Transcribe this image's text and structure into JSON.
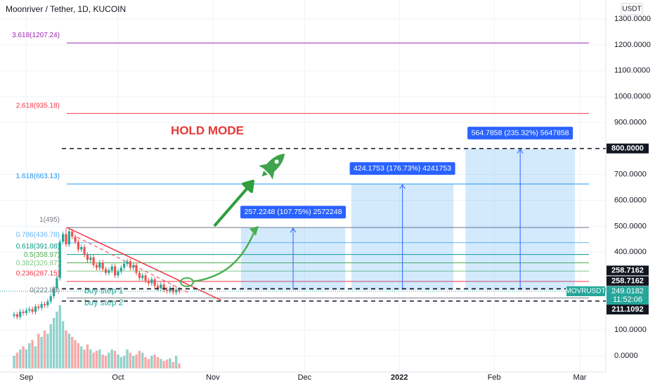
{
  "chart_data": {
    "type": "candlestick",
    "title": "Moonriver / Tether, 1D, KUCOIN",
    "currency": "USDT",
    "annotation": "HOLD MODE",
    "buy_steps": [
      "buy step 1",
      "buy step 2"
    ],
    "ylim": [
      -62.3,
      1373
    ],
    "yticks": [
      {
        "value": 0,
        "label": "0.0000"
      },
      {
        "value": 100,
        "label": "100.0000"
      },
      {
        "value": 400,
        "label": "400.0000"
      },
      {
        "value": 500,
        "label": "500.0000"
      },
      {
        "value": 600,
        "label": "600.0000"
      },
      {
        "value": 700,
        "label": "700.0000"
      },
      {
        "value": 900,
        "label": "900.0000"
      },
      {
        "value": 1000,
        "label": "1000.0000"
      },
      {
        "value": 1100,
        "label": "1100.0000"
      },
      {
        "value": 1200,
        "label": "1200.0000"
      },
      {
        "value": 1300,
        "label": "1300.0000"
      }
    ],
    "xlim": [
      -8.6,
      189.5
    ],
    "xticks": [
      {
        "value": 0,
        "label": "Sep"
      },
      {
        "value": 30,
        "label": "Oct"
      },
      {
        "value": 61,
        "label": "Nov"
      },
      {
        "value": 91,
        "label": "Dec"
      },
      {
        "value": 122,
        "label": "2022"
      },
      {
        "value": 153,
        "label": "Feb"
      },
      {
        "value": 181,
        "label": "Mar"
      }
    ],
    "up_color": "#26a69a",
    "down_color": "#ef5350",
    "x": [
      -4,
      -3,
      -2,
      -1,
      0,
      1,
      2,
      3,
      4,
      5,
      6,
      7,
      8,
      9,
      10,
      11,
      12,
      13,
      14,
      15,
      16,
      17,
      18,
      19,
      20,
      21,
      22,
      23,
      24,
      25,
      26,
      27,
      28,
      29,
      30,
      31,
      32,
      33,
      34,
      35,
      36,
      37,
      38,
      39,
      40,
      41,
      42,
      43,
      44,
      45,
      46,
      47,
      48,
      49,
      50
    ],
    "open": [
      155,
      160,
      150,
      170,
      165,
      175,
      180,
      170,
      190,
      185,
      200,
      195,
      210,
      230,
      260,
      300,
      440,
      470,
      430,
      480,
      460,
      440,
      410,
      420,
      390,
      370,
      380,
      350,
      340,
      360,
      335,
      320,
      330,
      345,
      310,
      325,
      340,
      355,
      365,
      340,
      350,
      320,
      300,
      310,
      290,
      280,
      295,
      270,
      260,
      275,
      255,
      250,
      262,
      245,
      255
    ],
    "high": [
      170,
      170,
      180,
      180,
      185,
      190,
      190,
      200,
      200,
      210,
      210,
      220,
      240,
      270,
      310,
      450,
      480,
      495,
      490,
      490,
      470,
      450,
      430,
      430,
      400,
      390,
      390,
      360,
      370,
      370,
      345,
      340,
      355,
      355,
      335,
      350,
      365,
      375,
      375,
      360,
      360,
      330,
      320,
      320,
      300,
      305,
      305,
      280,
      285,
      285,
      265,
      272,
      272,
      265,
      265
    ],
    "low": [
      145,
      140,
      140,
      155,
      155,
      165,
      160,
      160,
      175,
      175,
      185,
      185,
      200,
      220,
      250,
      290,
      430,
      420,
      420,
      450,
      430,
      400,
      400,
      380,
      360,
      360,
      340,
      330,
      330,
      325,
      310,
      310,
      320,
      300,
      300,
      315,
      330,
      345,
      330,
      330,
      310,
      290,
      290,
      280,
      270,
      270,
      260,
      250,
      250,
      245,
      240,
      240,
      235,
      235,
      239
    ],
    "close": [
      160,
      150,
      170,
      165,
      175,
      180,
      170,
      190,
      185,
      200,
      195,
      210,
      230,
      260,
      300,
      440,
      470,
      430,
      480,
      460,
      440,
      410,
      420,
      390,
      370,
      380,
      350,
      340,
      360,
      335,
      320,
      330,
      345,
      310,
      325,
      340,
      355,
      365,
      340,
      350,
      320,
      300,
      310,
      290,
      280,
      295,
      270,
      260,
      275,
      255,
      250,
      262,
      245,
      255,
      249
    ],
    "volume": [
      20,
      25,
      30,
      35,
      30,
      40,
      45,
      35,
      55,
      50,
      60,
      55,
      70,
      80,
      90,
      100,
      75,
      60,
      55,
      50,
      45,
      40,
      35,
      30,
      38,
      30,
      25,
      28,
      30,
      22,
      20,
      25,
      30,
      28,
      22,
      18,
      20,
      30,
      25,
      20,
      22,
      28,
      25,
      18,
      15,
      20,
      22,
      18,
      15,
      12,
      14,
      16,
      10,
      20,
      8
    ],
    "fibs": [
      {
        "label": "3.618(1207.24)",
        "value": 1207.24,
        "color": "#9c27b0"
      },
      {
        "label": "2.618(935.18)",
        "value": 935.18,
        "color": "#f23645"
      },
      {
        "label": "1.618(663.13)",
        "value": 663.13,
        "color": "#2196f3"
      },
      {
        "label": "1(495)",
        "value": 495,
        "color": "#787b86"
      },
      {
        "label": "0.786(436.78)",
        "value": 436.78,
        "color": "#64b5f6"
      },
      {
        "label": "0.618(391.08)",
        "value": 391.08,
        "color": "#089981"
      },
      {
        "label": "0.5(358.97)",
        "value": 358.97,
        "color": "#4caf50"
      },
      {
        "label": "0.382(326.87)",
        "value": 326.87,
        "color": "#81c784"
      },
      {
        "label": "0.236(287.15)",
        "value": 287.15,
        "color": "#f23645"
      },
      {
        "label": "0(222.95)",
        "value": 222.95,
        "color": "#787b86"
      }
    ],
    "levels": [
      {
        "value": 800,
        "label": "800.0000"
      },
      {
        "value": 258.7162,
        "label": "258.7162"
      },
      {
        "value": 258.7162,
        "label": "258.7162"
      },
      {
        "value": 211.1092,
        "label": "211.1092"
      }
    ],
    "last": {
      "symbol": "MOVRUSDT",
      "value": 249.0182,
      "label": "249.0182",
      "timer": "11:52:06"
    },
    "targets": [
      {
        "label": "257.2248 (107.75%) 2572248",
        "from": 254,
        "to": 495,
        "start": 70.2,
        "end": 104.3
      },
      {
        "label": "424.1753 (176.73%) 4241753",
        "from": 254,
        "to": 663.13,
        "start": 106.3,
        "end": 139.7
      },
      {
        "label": "564.7858 (235.32%) 5647858",
        "from": 254,
        "to": 800,
        "start": 143.6,
        "end": 179.4
      }
    ]
  }
}
